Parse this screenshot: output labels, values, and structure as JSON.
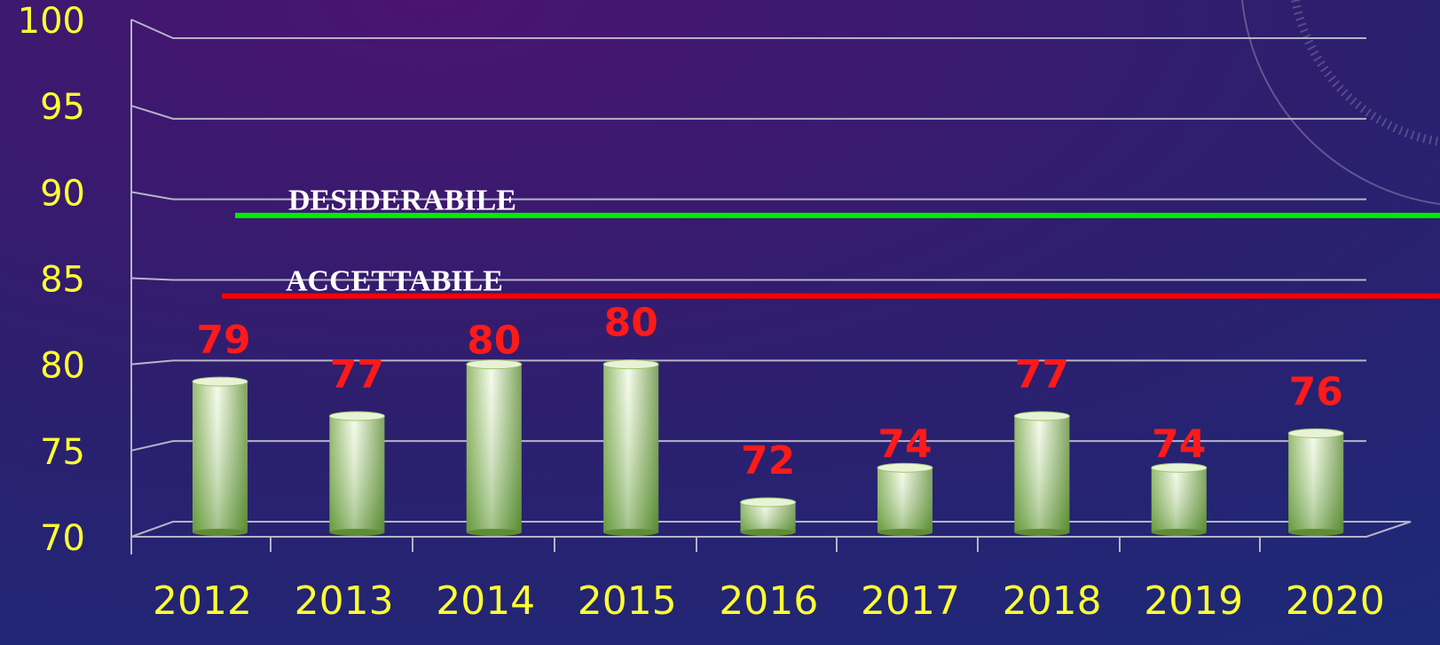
{
  "chart_data": {
    "type": "bar",
    "categories": [
      "2012",
      "2013",
      "2014",
      "2015",
      "2016",
      "2017",
      "2018",
      "2019",
      "2020"
    ],
    "values": [
      79,
      77,
      80,
      80,
      72,
      74,
      77,
      74,
      76
    ],
    "color": "#8fbf5a",
    "value_label_color": "#ff1a1a",
    "ylim": [
      70,
      100
    ],
    "yticks": [
      70,
      75,
      80,
      85,
      90,
      95,
      100
    ],
    "grid": true,
    "reference_lines": [
      {
        "label": "DESIDERABILE",
        "value": 89,
        "color": "#00ee00"
      },
      {
        "label": "ACCETTABILE",
        "value": 84,
        "color": "#ff0000"
      }
    ]
  }
}
